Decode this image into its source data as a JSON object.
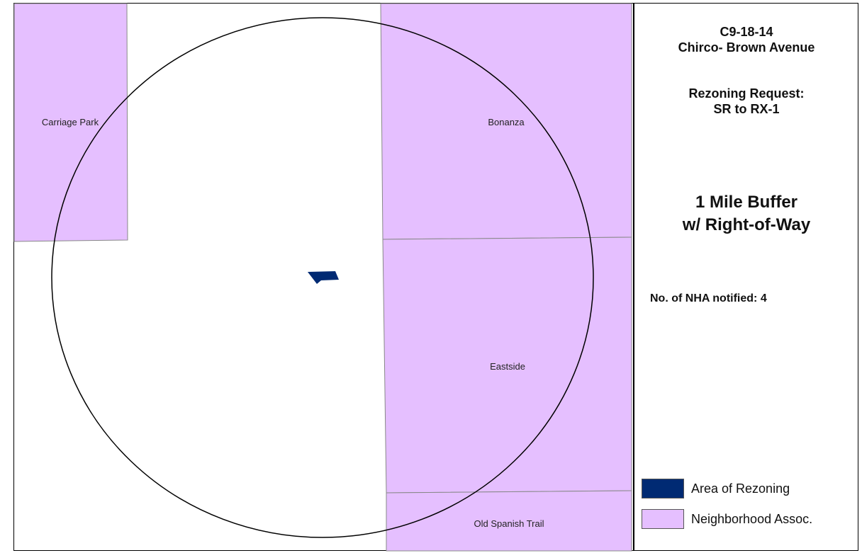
{
  "legend_panel": {
    "case_number": "C9-18-14",
    "case_name": "Chirco- Brown Avenue",
    "request_label": "Rezoning Request:",
    "request_change": "SR to RX-1",
    "buffer_title_line1": "1 Mile Buffer",
    "buffer_title_line2": "w/ Right-of-Way",
    "nha_notified": "No. of NHA notified: 4",
    "legend_items": [
      {
        "label": "Area of Rezoning",
        "color": "#002a73"
      },
      {
        "label": "Neighborhood Assoc.",
        "color": "#e5bfff"
      }
    ]
  },
  "map": {
    "neighborhoods": [
      {
        "name": "Carriage Park"
      },
      {
        "name": "Bonanza"
      },
      {
        "name": "Eastside"
      },
      {
        "name": "Old Spanish Trail"
      }
    ],
    "colors": {
      "neighborhood_fill": "#e5bfff",
      "rezoning_fill": "#002a73",
      "boundary_stroke": "#888888",
      "buffer_stroke": "#000000"
    }
  }
}
